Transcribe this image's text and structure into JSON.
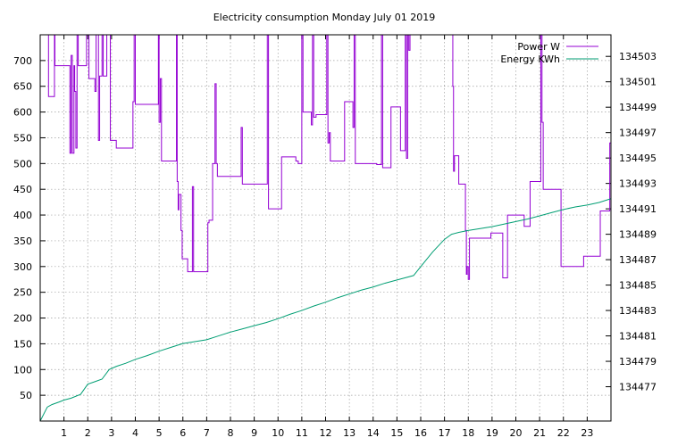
{
  "chart_data": {
    "type": "line",
    "title": "Electricity consumption Monday July 01 2019",
    "xlabel": "",
    "ylabel": "",
    "y2label": "",
    "grid": true,
    "legend_position": "top-right",
    "xlim": [
      0,
      24
    ],
    "ylim": [
      0,
      750
    ],
    "y2lim": [
      134474.3,
      134504.7
    ],
    "x_ticks": [
      1,
      2,
      3,
      4,
      5,
      6,
      7,
      8,
      9,
      10,
      11,
      12,
      13,
      14,
      15,
      16,
      17,
      18,
      19,
      20,
      21,
      22,
      23
    ],
    "y_ticks": [
      50,
      100,
      150,
      200,
      250,
      300,
      350,
      400,
      450,
      500,
      550,
      600,
      650,
      700
    ],
    "y2_ticks": [
      134477,
      134479,
      134481,
      134483,
      134485,
      134487,
      134489,
      134491,
      134493,
      134495,
      134497,
      134499,
      134501,
      134503
    ],
    "series": [
      {
        "name": "Power W",
        "axis": "left",
        "step": true,
        "color": "#9400d3",
        "points": [
          [
            0.0,
            760
          ],
          [
            0.3,
            760
          ],
          [
            0.35,
            630
          ],
          [
            0.55,
            630
          ],
          [
            0.6,
            750
          ],
          [
            0.62,
            690
          ],
          [
            0.95,
            690
          ],
          [
            1.2,
            690
          ],
          [
            1.25,
            520
          ],
          [
            1.3,
            710
          ],
          [
            1.35,
            520
          ],
          [
            1.42,
            690
          ],
          [
            1.45,
            640
          ],
          [
            1.5,
            530
          ],
          [
            1.55,
            750
          ],
          [
            1.6,
            690
          ],
          [
            1.9,
            690
          ],
          [
            1.95,
            750
          ],
          [
            2.05,
            665
          ],
          [
            2.25,
            665
          ],
          [
            2.3,
            640
          ],
          [
            2.35,
            750
          ],
          [
            2.45,
            545
          ],
          [
            2.5,
            670
          ],
          [
            2.6,
            750
          ],
          [
            2.65,
            670
          ],
          [
            2.75,
            670
          ],
          [
            2.8,
            750
          ],
          [
            2.9,
            750
          ],
          [
            2.95,
            545
          ],
          [
            3.1,
            545
          ],
          [
            3.2,
            530
          ],
          [
            3.5,
            530
          ],
          [
            3.55,
            530
          ],
          [
            3.85,
            530
          ],
          [
            3.9,
            620
          ],
          [
            3.95,
            760
          ],
          [
            4.0,
            615
          ],
          [
            4.5,
            615
          ],
          [
            4.95,
            615
          ],
          [
            4.97,
            760
          ],
          [
            5.0,
            580
          ],
          [
            5.05,
            665
          ],
          [
            5.1,
            505
          ],
          [
            5.3,
            505
          ],
          [
            5.7,
            505
          ],
          [
            5.73,
            760
          ],
          [
            5.76,
            465
          ],
          [
            5.8,
            410
          ],
          [
            5.83,
            440
          ],
          [
            5.9,
            440
          ],
          [
            5.92,
            370
          ],
          [
            5.97,
            315
          ],
          [
            6.15,
            315
          ],
          [
            6.2,
            290
          ],
          [
            6.35,
            290
          ],
          [
            6.4,
            455
          ],
          [
            6.45,
            290
          ],
          [
            6.8,
            290
          ],
          [
            7.0,
            290
          ],
          [
            7.05,
            385
          ],
          [
            7.1,
            390
          ],
          [
            7.2,
            390
          ],
          [
            7.25,
            500
          ],
          [
            7.3,
            500
          ],
          [
            7.35,
            655
          ],
          [
            7.4,
            500
          ],
          [
            7.45,
            475
          ],
          [
            8.0,
            475
          ],
          [
            8.4,
            475
          ],
          [
            8.45,
            570
          ],
          [
            8.5,
            460
          ],
          [
            9.0,
            460
          ],
          [
            9.5,
            460
          ],
          [
            9.55,
            760
          ],
          [
            9.6,
            412
          ],
          [
            10.0,
            412
          ],
          [
            10.1,
            412
          ],
          [
            10.15,
            513
          ],
          [
            10.5,
            513
          ],
          [
            10.65,
            513
          ],
          [
            10.75,
            505
          ],
          [
            10.85,
            500
          ],
          [
            10.95,
            500
          ],
          [
            11.0,
            760
          ],
          [
            11.05,
            600
          ],
          [
            11.35,
            600
          ],
          [
            11.4,
            575
          ],
          [
            11.45,
            760
          ],
          [
            11.5,
            590
          ],
          [
            11.6,
            595
          ],
          [
            11.95,
            595
          ],
          [
            12.0,
            595
          ],
          [
            12.05,
            760
          ],
          [
            12.1,
            540
          ],
          [
            12.15,
            560
          ],
          [
            12.2,
            505
          ],
          [
            12.5,
            505
          ],
          [
            12.75,
            505
          ],
          [
            12.8,
            620
          ],
          [
            12.9,
            620
          ],
          [
            13.0,
            620
          ],
          [
            13.1,
            620
          ],
          [
            13.15,
            570
          ],
          [
            13.2,
            760
          ],
          [
            13.25,
            500
          ],
          [
            13.5,
            500
          ],
          [
            14.0,
            500
          ],
          [
            14.05,
            500
          ],
          [
            14.1,
            500
          ],
          [
            14.15,
            498
          ],
          [
            14.3,
            498
          ],
          [
            14.35,
            760
          ],
          [
            14.4,
            492
          ],
          [
            14.6,
            492
          ],
          [
            14.7,
            492
          ],
          [
            14.75,
            610
          ],
          [
            14.9,
            610
          ],
          [
            15.1,
            610
          ],
          [
            15.15,
            525
          ],
          [
            15.3,
            525
          ],
          [
            15.35,
            760
          ],
          [
            15.4,
            510
          ],
          [
            15.45,
            760
          ],
          [
            15.5,
            720
          ],
          [
            15.55,
            760
          ],
          [
            15.6,
            760
          ],
          [
            17.3,
            760
          ],
          [
            17.35,
            650
          ],
          [
            17.38,
            485
          ],
          [
            17.42,
            515
          ],
          [
            17.55,
            515
          ],
          [
            17.6,
            460
          ],
          [
            17.85,
            460
          ],
          [
            17.88,
            370
          ],
          [
            17.92,
            285
          ],
          [
            17.95,
            300
          ],
          [
            18.0,
            275
          ],
          [
            18.05,
            355
          ],
          [
            18.5,
            355
          ],
          [
            18.9,
            355
          ],
          [
            18.95,
            365
          ],
          [
            19.2,
            365
          ],
          [
            19.4,
            365
          ],
          [
            19.45,
            278
          ],
          [
            19.6,
            278
          ],
          [
            19.65,
            400
          ],
          [
            20.15,
            400
          ],
          [
            20.3,
            400
          ],
          [
            20.35,
            378
          ],
          [
            20.5,
            378
          ],
          [
            20.6,
            465
          ],
          [
            20.8,
            465
          ],
          [
            21.0,
            465
          ],
          [
            21.05,
            760
          ],
          [
            21.1,
            580
          ],
          [
            21.15,
            450
          ],
          [
            21.4,
            450
          ],
          [
            21.8,
            450
          ],
          [
            21.85,
            450
          ],
          [
            21.9,
            300
          ],
          [
            22.2,
            300
          ],
          [
            22.5,
            300
          ],
          [
            22.75,
            300
          ],
          [
            22.85,
            320
          ],
          [
            23.2,
            320
          ],
          [
            23.5,
            320
          ],
          [
            23.55,
            408
          ],
          [
            23.9,
            408
          ],
          [
            23.95,
            540
          ],
          [
            24.0,
            548
          ]
        ]
      },
      {
        "name": "Energy KWh",
        "axis": "right",
        "step": false,
        "color": "#009e73",
        "points": [
          [
            0.0,
            134474.3
          ],
          [
            0.3,
            134475.4
          ],
          [
            0.5,
            134475.6
          ],
          [
            0.8,
            134475.8
          ],
          [
            1.0,
            134475.95
          ],
          [
            1.3,
            134476.1
          ],
          [
            1.7,
            134476.4
          ],
          [
            2.0,
            134477.2
          ],
          [
            2.3,
            134477.4
          ],
          [
            2.6,
            134477.6
          ],
          [
            2.9,
            134478.35
          ],
          [
            3.2,
            134478.6
          ],
          [
            3.6,
            134478.85
          ],
          [
            4.0,
            134479.15
          ],
          [
            4.5,
            134479.45
          ],
          [
            5.0,
            134479.8
          ],
          [
            5.5,
            134480.1
          ],
          [
            6.0,
            134480.4
          ],
          [
            6.5,
            134480.55
          ],
          [
            7.0,
            134480.7
          ],
          [
            7.5,
            134481.0
          ],
          [
            8.0,
            134481.3
          ],
          [
            8.5,
            134481.55
          ],
          [
            9.0,
            134481.8
          ],
          [
            9.5,
            134482.05
          ],
          [
            10.0,
            134482.35
          ],
          [
            10.5,
            134482.7
          ],
          [
            11.0,
            134483.0
          ],
          [
            11.5,
            134483.35
          ],
          [
            12.0,
            134483.65
          ],
          [
            12.5,
            134484.0
          ],
          [
            13.0,
            134484.3
          ],
          [
            13.5,
            134484.6
          ],
          [
            14.0,
            134484.85
          ],
          [
            14.5,
            134485.15
          ],
          [
            15.0,
            134485.4
          ],
          [
            15.7,
            134485.75
          ],
          [
            16.0,
            134486.45
          ],
          [
            16.5,
            134487.6
          ],
          [
            17.0,
            134488.6
          ],
          [
            17.3,
            134489.0
          ],
          [
            17.6,
            134489.15
          ],
          [
            18.0,
            134489.3
          ],
          [
            18.5,
            134489.45
          ],
          [
            19.0,
            134489.6
          ],
          [
            19.5,
            134489.8
          ],
          [
            20.0,
            134490.0
          ],
          [
            20.5,
            134490.2
          ],
          [
            21.0,
            134490.45
          ],
          [
            21.5,
            134490.7
          ],
          [
            22.0,
            134490.95
          ],
          [
            22.5,
            134491.15
          ],
          [
            23.0,
            134491.3
          ],
          [
            23.5,
            134491.5
          ],
          [
            24.0,
            134491.8
          ]
        ]
      }
    ]
  }
}
